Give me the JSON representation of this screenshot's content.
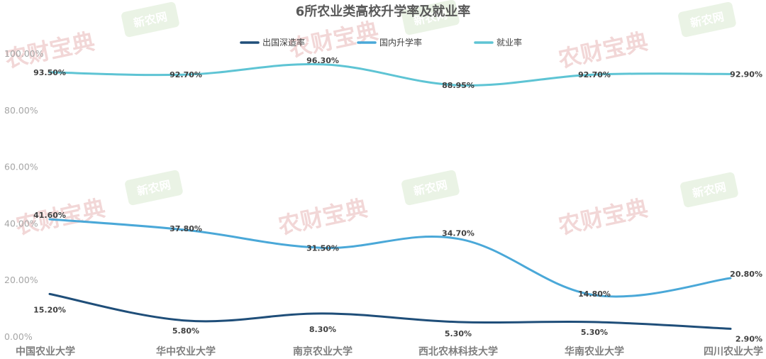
{
  "chart_data": {
    "type": "line",
    "title": "6所农业类高校升学率及就业率",
    "categories": [
      "中国农业大学",
      "华中农业大学",
      "南京农业大学",
      "西北农林科技大学",
      "华南农业大学",
      "四川农业大学"
    ],
    "ylim": [
      0,
      100
    ],
    "y_ticks": [
      "0.00%",
      "20.00%",
      "40.00%",
      "60.00%",
      "80.00%",
      "100.00%"
    ],
    "grid": false,
    "legend_position": "top",
    "series": [
      {
        "name": "出国深造率",
        "color": "#1f4e79",
        "values": [
          15.2,
          5.8,
          8.3,
          5.3,
          5.3,
          2.9
        ],
        "labels": [
          "15.20%",
          "5.80%",
          "8.30%",
          "5.30%",
          "5.30%",
          "2.90%"
        ]
      },
      {
        "name": "国内升学率",
        "color": "#4aa8d8",
        "values": [
          41.6,
          37.8,
          31.5,
          34.7,
          14.8,
          20.8
        ],
        "labels": [
          "41.60%",
          "37.80%",
          "31.50%",
          "34.70%",
          "14.80%",
          "20.80%"
        ]
      },
      {
        "name": "就业率",
        "color": "#5ec4d4",
        "values": [
          93.5,
          92.7,
          96.3,
          88.95,
          92.7,
          92.9
        ],
        "labels": [
          "93.50%",
          "92.70%",
          "96.30%",
          "88.95%",
          "92.70%",
          "92.90%"
        ]
      }
    ]
  },
  "watermarks": {
    "red_text": "农财宝典",
    "green_text": "新农网"
  }
}
